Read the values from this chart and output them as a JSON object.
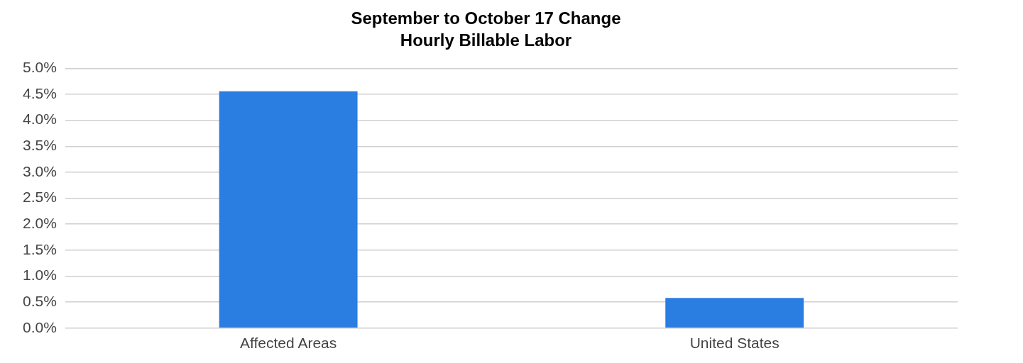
{
  "chart_data": {
    "type": "bar",
    "title": "September to October 17 Change",
    "subtitle": "Hourly Billable Labor",
    "categories": [
      "Affected Areas",
      "United States"
    ],
    "values": [
      4.56,
      0.58
    ],
    "color": "#2a7de1",
    "ylim": [
      0,
      5
    ],
    "yticks": [
      {
        "value": 0,
        "label": "0.0%"
      },
      {
        "value": 0.5,
        "label": "0.5%"
      },
      {
        "value": 1,
        "label": "1.0%"
      },
      {
        "value": 1.5,
        "label": "1.5%"
      },
      {
        "value": 2,
        "label": "2.0%"
      },
      {
        "value": 2.5,
        "label": "2.5%"
      },
      {
        "value": 3,
        "label": "3.0%"
      },
      {
        "value": 3.5,
        "label": "3.5%"
      },
      {
        "value": 4,
        "label": "4.0%"
      },
      {
        "value": 4.5,
        "label": "4.5%"
      },
      {
        "value": 5,
        "label": "5.0%"
      }
    ],
    "grid": "y",
    "legend": false
  }
}
